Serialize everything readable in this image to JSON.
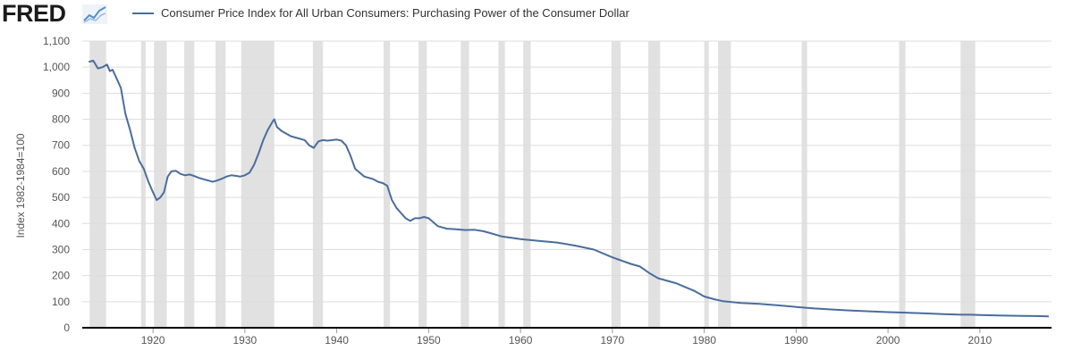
{
  "header": {
    "logo_text": "FRED",
    "logo_icon": "line-chart-icon"
  },
  "colors": {
    "series": "#4a6d9c",
    "recession": "#e1e1e1",
    "grid": "#dddddd",
    "axis": "#000000"
  },
  "chart_data": {
    "type": "line",
    "title": "",
    "xlabel": "",
    "ylabel": "Index 1982-1984=100",
    "xlim": [
      1912.3,
      2017.8
    ],
    "ylim": [
      0,
      1100
    ],
    "yticks": [
      0,
      100,
      200,
      300,
      400,
      500,
      600,
      700,
      800,
      900,
      1000,
      1100
    ],
    "ytick_labels": [
      "0",
      "100",
      "200",
      "300",
      "400",
      "500",
      "600",
      "700",
      "800",
      "900",
      "1,000",
      "1,100"
    ],
    "xticks": [
      1920,
      1930,
      1940,
      1950,
      1960,
      1970,
      1980,
      1990,
      2000,
      2010
    ],
    "xtick_labels": [
      "1920",
      "1930",
      "1940",
      "1950",
      "1960",
      "1970",
      "1980",
      "1990",
      "2000",
      "2010"
    ],
    "grid": true,
    "legend_position": "top-left",
    "recessions": [
      [
        1913.1,
        1914.9
      ],
      [
        1918.7,
        1919.2
      ],
      [
        1920.1,
        1921.5
      ],
      [
        1923.4,
        1924.5
      ],
      [
        1926.8,
        1927.9
      ],
      [
        1929.6,
        1933.2
      ],
      [
        1937.4,
        1938.5
      ],
      [
        1945.1,
        1945.8
      ],
      [
        1948.9,
        1949.8
      ],
      [
        1953.5,
        1954.4
      ],
      [
        1957.6,
        1958.3
      ],
      [
        1960.3,
        1961.1
      ],
      [
        1969.9,
        1970.9
      ],
      [
        1973.9,
        1975.2
      ],
      [
        1980.0,
        1980.5
      ],
      [
        1981.5,
        1982.9
      ],
      [
        1990.6,
        1991.2
      ],
      [
        2001.2,
        2001.9
      ],
      [
        2007.9,
        2009.5
      ]
    ],
    "series": [
      {
        "name": "Consumer Price Index for All Urban Consumers: Purchasing Power of the Consumer Dollar",
        "x": [
          1913.0,
          1913.5,
          1914.0,
          1914.5,
          1915.0,
          1915.3,
          1915.6,
          1916.0,
          1916.5,
          1917.0,
          1917.5,
          1918.0,
          1918.5,
          1919.0,
          1919.5,
          1920.0,
          1920.4,
          1920.8,
          1921.2,
          1921.6,
          1922.0,
          1922.5,
          1923.0,
          1923.5,
          1924.0,
          1924.5,
          1925.0,
          1925.5,
          1926.0,
          1926.5,
          1927.0,
          1927.5,
          1928.0,
          1928.5,
          1929.0,
          1929.5,
          1930.0,
          1930.5,
          1931.0,
          1931.5,
          1932.0,
          1932.5,
          1933.0,
          1933.2,
          1933.5,
          1934.0,
          1934.5,
          1935.0,
          1935.5,
          1936.0,
          1936.5,
          1937.0,
          1937.5,
          1938.0,
          1938.5,
          1939.0,
          1939.5,
          1940.0,
          1940.5,
          1941.0,
          1941.5,
          1942.0,
          1942.5,
          1943.0,
          1943.5,
          1944.0,
          1944.5,
          1945.0,
          1945.5,
          1946.0,
          1946.5,
          1947.0,
          1947.5,
          1948.0,
          1948.5,
          1949.0,
          1949.5,
          1950.0,
          1950.5,
          1951.0,
          1951.5,
          1952.0,
          1953.0,
          1954.0,
          1955.0,
          1956.0,
          1957.0,
          1958.0,
          1959.0,
          1960.0,
          1962.0,
          1964.0,
          1966.0,
          1968.0,
          1970.0,
          1972.0,
          1973.0,
          1974.0,
          1975.0,
          1976.0,
          1977.0,
          1978.0,
          1979.0,
          1980.0,
          1981.0,
          1982.0,
          1984.0,
          1986.0,
          1988.0,
          1990.0,
          1992.0,
          1994.0,
          1996.0,
          1998.0,
          2000.0,
          2002.0,
          2004.0,
          2006.0,
          2008.0,
          2009.0,
          2010.0,
          2012.0,
          2014.0,
          2016.0,
          2017.5
        ],
        "values": [
          1020,
          1025,
          995,
          1000,
          1010,
          985,
          990,
          960,
          920,
          820,
          760,
          690,
          640,
          610,
          560,
          520,
          490,
          500,
          520,
          580,
          600,
          602,
          590,
          585,
          588,
          582,
          575,
          570,
          565,
          560,
          565,
          572,
          580,
          585,
          583,
          580,
          585,
          595,
          625,
          670,
          720,
          760,
          790,
          800,
          770,
          755,
          745,
          735,
          730,
          725,
          720,
          700,
          690,
          715,
          720,
          718,
          720,
          722,
          718,
          700,
          660,
          610,
          595,
          580,
          575,
          570,
          560,
          555,
          545,
          490,
          460,
          440,
          420,
          410,
          420,
          420,
          425,
          420,
          405,
          390,
          385,
          380,
          378,
          375,
          376,
          370,
          360,
          350,
          345,
          340,
          333,
          327,
          315,
          300,
          270,
          245,
          235,
          210,
          190,
          180,
          170,
          155,
          140,
          120,
          110,
          102,
          95,
          92,
          86,
          80,
          74,
          70,
          66,
          63,
          60,
          58,
          55,
          52,
          50,
          50,
          49,
          47,
          46,
          45,
          44
        ]
      }
    ]
  }
}
